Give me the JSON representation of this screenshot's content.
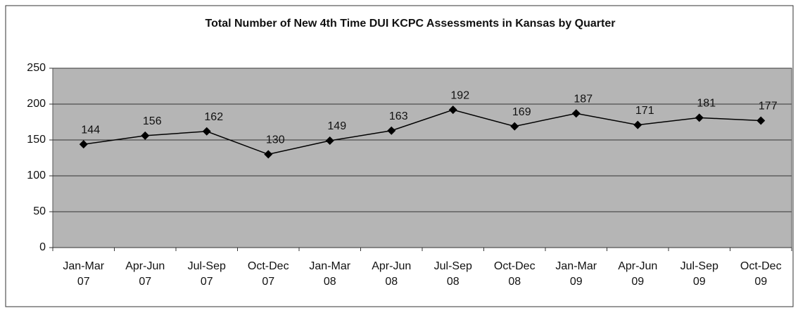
{
  "chart_data": {
    "type": "line",
    "title": "Total Number of New 4th Time DUI KCPC Assessments in Kansas by Quarter",
    "categories": [
      "Jan-Mar 07",
      "Apr-Jun 07",
      "Jul-Sep 07",
      "Oct-Dec 07",
      "Jan-Mar 08",
      "Apr-Jun 08",
      "Jul-Sep 08",
      "Oct-Dec 08",
      "Jan-Mar 09",
      "Apr-Jun 09",
      "Jul-Sep 09",
      "Oct-Dec 09"
    ],
    "values": [
      144,
      156,
      162,
      130,
      149,
      163,
      192,
      169,
      187,
      171,
      181,
      177
    ],
    "color": "#000000",
    "ylim": [
      0,
      250
    ],
    "yticks": [
      0,
      50,
      100,
      150,
      200,
      250
    ],
    "grid": true
  }
}
